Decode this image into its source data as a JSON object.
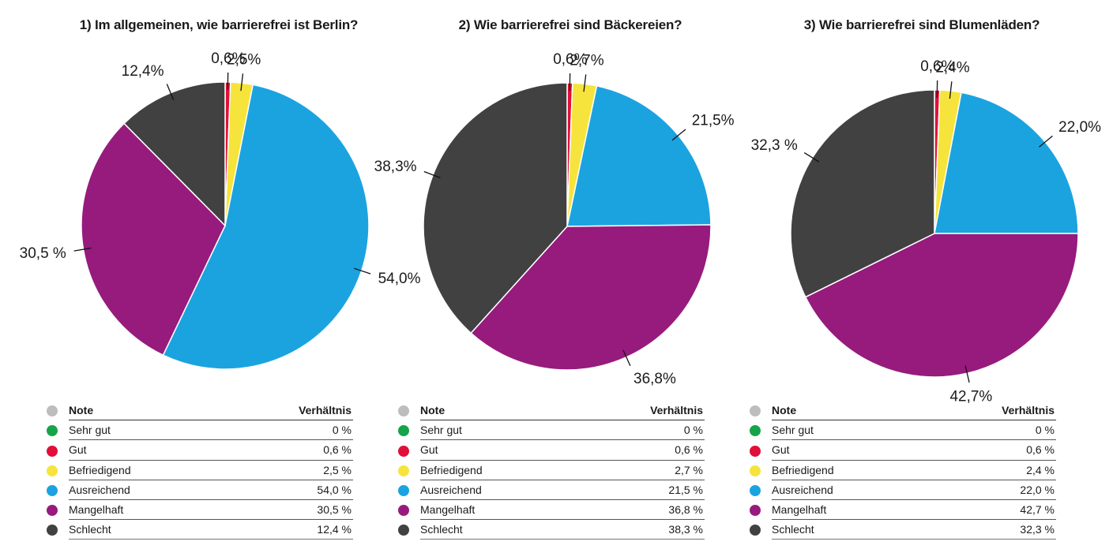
{
  "legend_header": {
    "note": "Note",
    "ratio": "Verhältnis"
  },
  "colors": {
    "header": "#bdbdbd",
    "Sehr gut": "#17a34a",
    "Gut": "#e0103a",
    "Befriedigend": "#f6e43c",
    "Ausreichend": "#1ba3e0",
    "Mangelhaft": "#961b7d",
    "Schlecht": "#414141"
  },
  "chart_data": [
    {
      "type": "pie",
      "title": "1) Im allgemeinen, wie barrierefrei ist Berlin?",
      "categories": [
        "Sehr gut",
        "Gut",
        "Befriedigend",
        "Ausreichend",
        "Mangelhaft",
        "Schlecht"
      ],
      "values": [
        0,
        0.6,
        2.5,
        54.0,
        30.5,
        12.4
      ],
      "pie_labels": [
        "",
        "0,6%",
        "2,5%",
        "54,0%",
        "30,5 %",
        "12,4%"
      ],
      "table_values": [
        "0 %",
        "0,6 %",
        "2,5 %",
        "54,0 %",
        "30,5 %",
        "12,4 %"
      ]
    },
    {
      "type": "pie",
      "title": "2) Wie barrierefrei sind Bäckereien?",
      "categories": [
        "Sehr gut",
        "Gut",
        "Befriedigend",
        "Ausreichend",
        "Mangelhaft",
        "Schlecht"
      ],
      "values": [
        0,
        0.6,
        2.7,
        21.5,
        36.8,
        38.3
      ],
      "pie_labels": [
        "",
        "0,6%",
        "2,7%",
        "21,5%",
        "36,8%",
        "38,3%"
      ],
      "table_values": [
        "0 %",
        "0,6 %",
        "2,7 %",
        "21,5 %",
        "36,8 %",
        "38,3 %"
      ]
    },
    {
      "type": "pie",
      "title": "3) Wie barrierefrei sind Blumenläden?",
      "categories": [
        "Sehr gut",
        "Gut",
        "Befriedigend",
        "Ausreichend",
        "Mangelhaft",
        "Schlecht"
      ],
      "values": [
        0,
        0.6,
        2.4,
        22.0,
        42.7,
        32.3
      ],
      "pie_labels": [
        "",
        "0,6%",
        "2,4%",
        "22,0%",
        "42,7%",
        "32,3 %"
      ],
      "table_values": [
        "0 %",
        "0,6 %",
        "2,4 %",
        "22,0 %",
        "42,7 %",
        "32,3 %"
      ]
    }
  ]
}
